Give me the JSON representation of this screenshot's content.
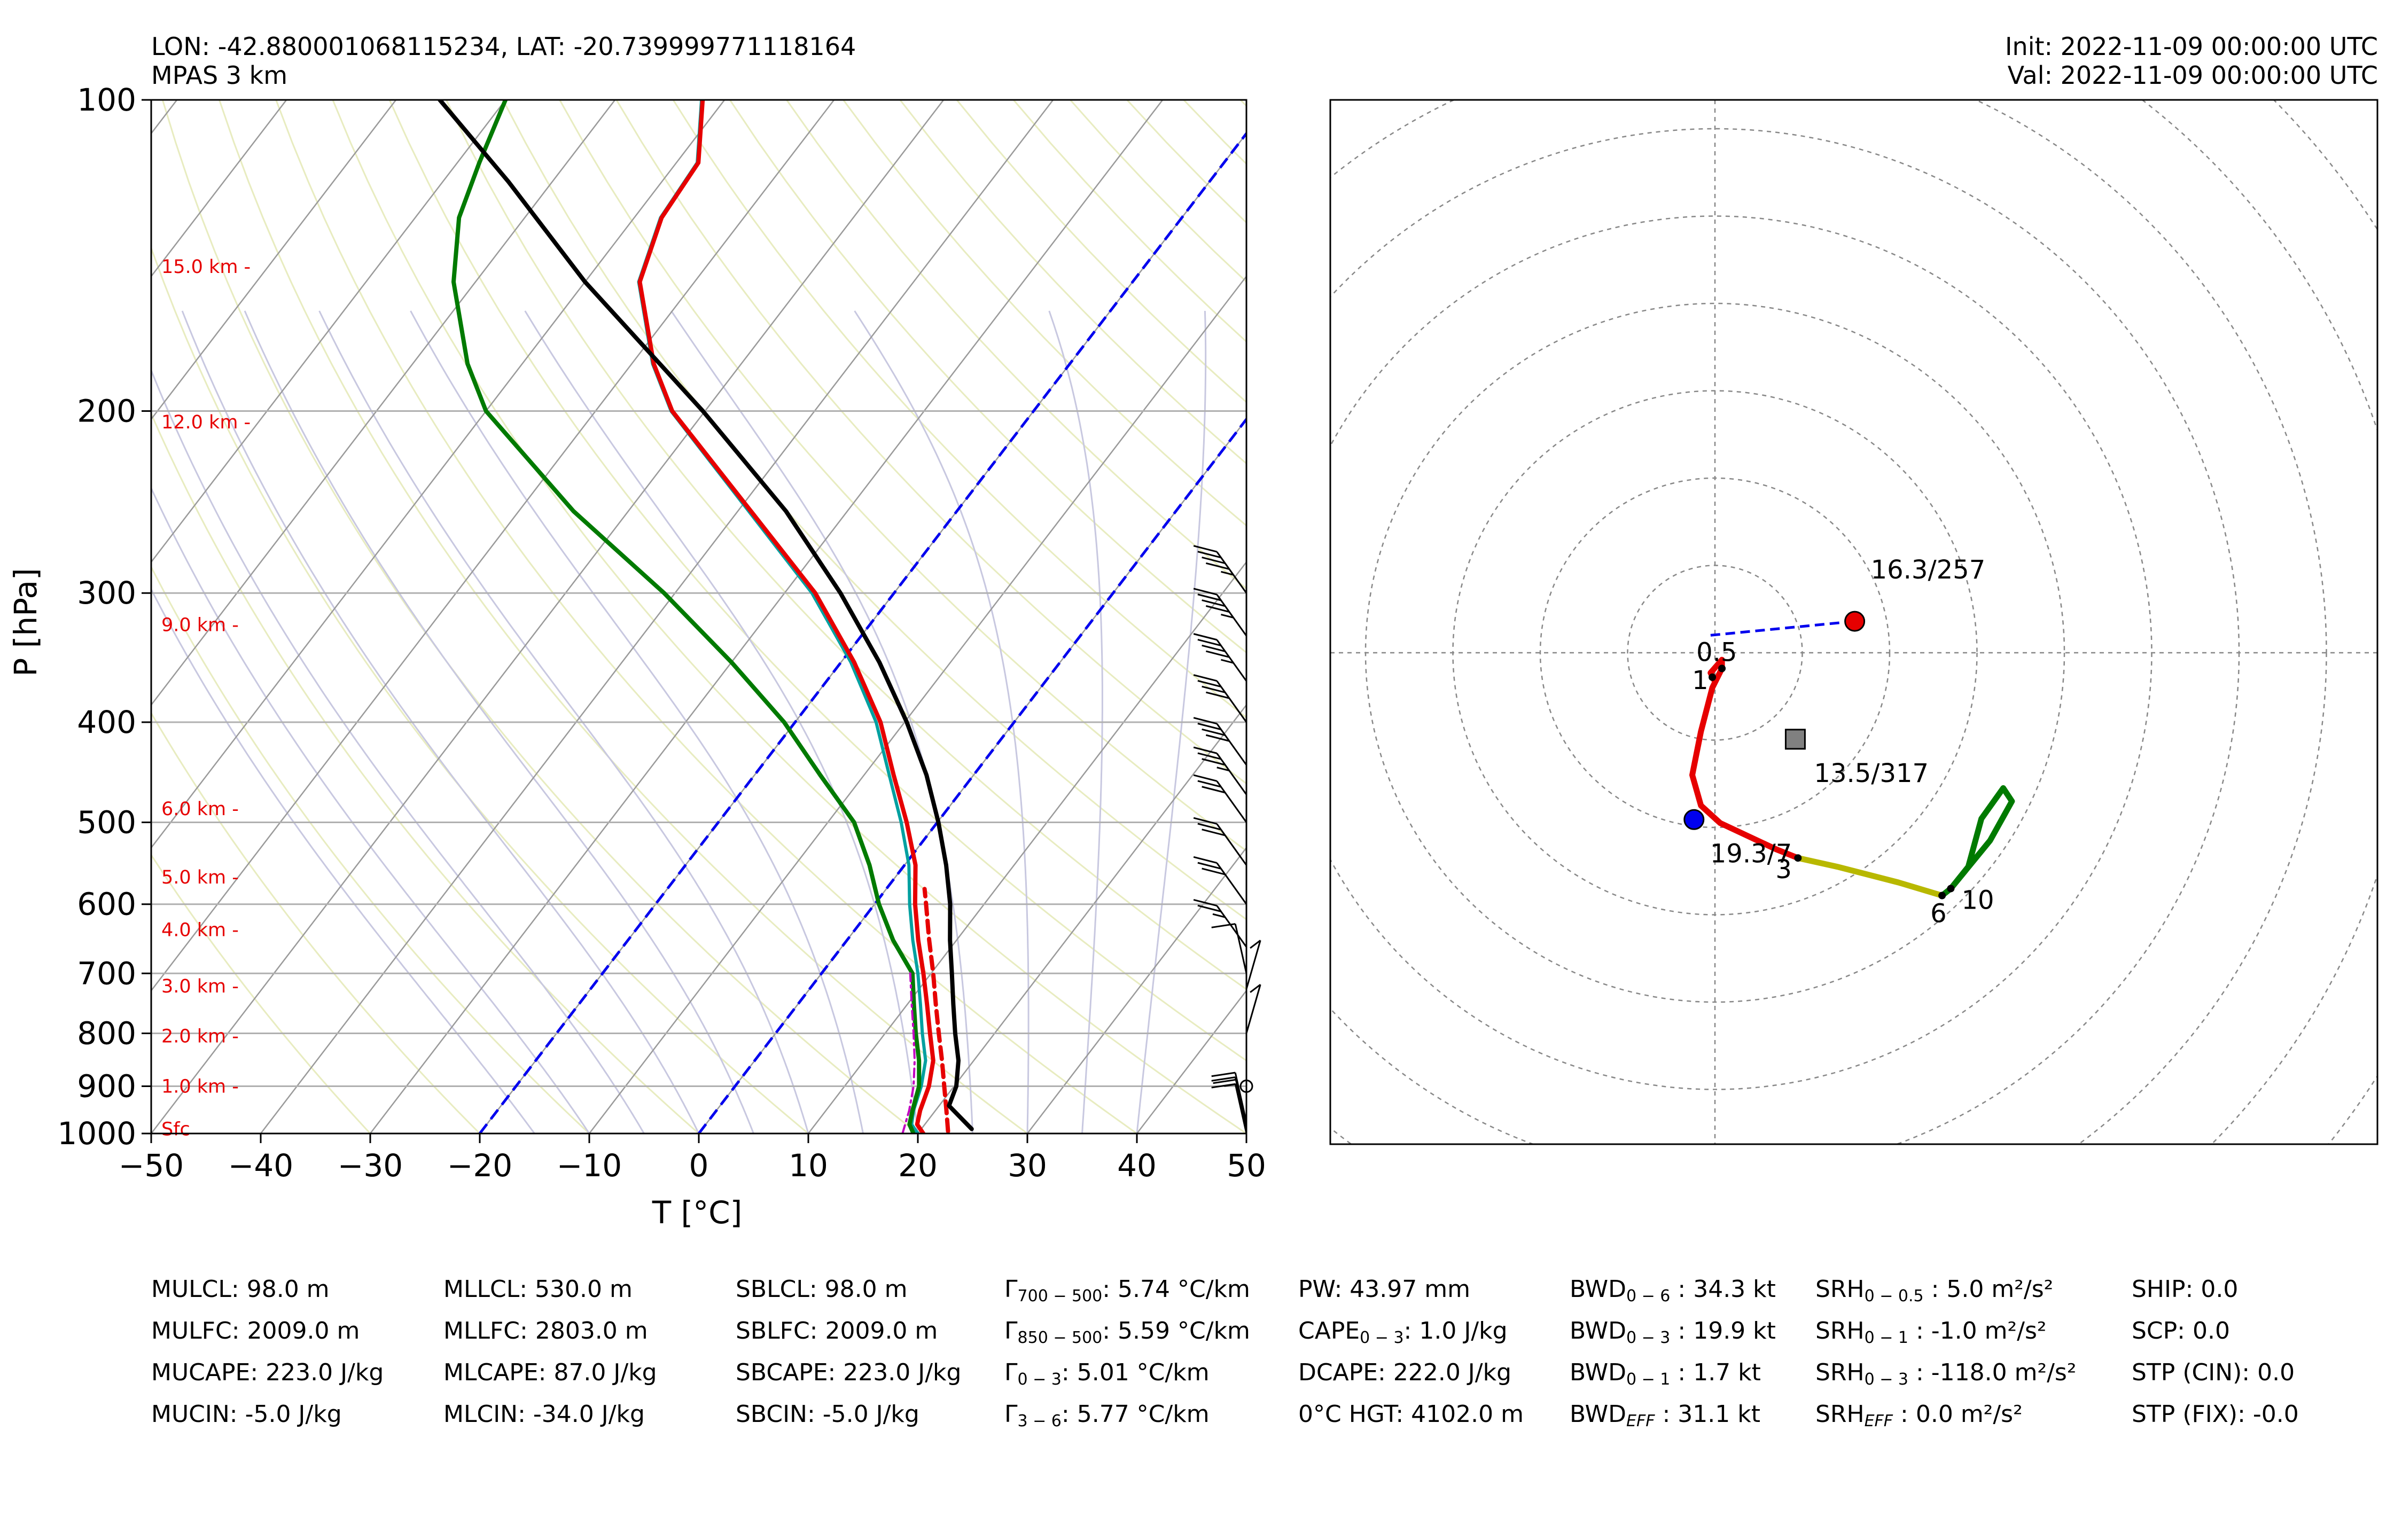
{
  "header": {
    "location": "LON: -42.880001068115234, LAT: -20.739999771118164",
    "model": "MPAS 3 km",
    "init": "Init: 2022-11-09 00:00:00 UTC",
    "valid": "Val: 2022-11-09 00:00:00 UTC"
  },
  "colors": {
    "temperature": "#e60000",
    "dewpoint": "#007a00",
    "parcel": "#000000",
    "virtual_temp": "#00a0a0",
    "dry_adiabat": "#e8ecc0",
    "moist_adiabat": "#c8c8e0",
    "isotherm": "#9a9a9a",
    "zero_isotherm": "#0000ee",
    "height_label": "#e60000",
    "hodo_0_3": "#e60000",
    "hodo_3_6": "#b8b800",
    "hodo_6_10": "#007a00"
  },
  "chart_data": [
    {
      "type": "line",
      "subtype": "skew-t log-p",
      "xlabel": "T [°C]",
      "ylabel": "P [hPa]",
      "xlim": [
        -50,
        50
      ],
      "ylim": [
        1000,
        100
      ],
      "y_scale": "log",
      "xticks": [
        -50,
        -40,
        -30,
        -20,
        -10,
        0,
        10,
        20,
        30,
        40,
        50
      ],
      "xtick_labels": [
        "−50",
        "−40",
        "−30",
        "−20",
        "−10",
        "0",
        "10",
        "20",
        "30",
        "40",
        "50"
      ],
      "yticks": [
        100,
        200,
        300,
        400,
        500,
        600,
        700,
        800,
        900,
        1000
      ],
      "ytick_labels": [
        "100",
        "200",
        "300",
        "400",
        "500",
        "600",
        "700",
        "800",
        "900",
        "1000"
      ],
      "grid": true,
      "height_labels": [
        {
          "p": 145,
          "label": "15.0 km -"
        },
        {
          "p": 205,
          "label": "12.0 km -"
        },
        {
          "p": 322,
          "label": "9.0 km -"
        },
        {
          "p": 485,
          "label": "6.0 km -"
        },
        {
          "p": 565,
          "label": "5.0 km -"
        },
        {
          "p": 635,
          "label": "4.0 km -"
        },
        {
          "p": 720,
          "label": "3.0 km -"
        },
        {
          "p": 805,
          "label": "2.0 km -"
        },
        {
          "p": 900,
          "label": "1.0 km -"
        },
        {
          "p": 990,
          "label": "Sfc"
        }
      ],
      "series": [
        {
          "role": "temperature",
          "p": [
            1000,
            980,
            950,
            900,
            850,
            800,
            750,
            700,
            650,
            600,
            550,
            500,
            450,
            400,
            350,
            300,
            250,
            200,
            180,
            150,
            130,
            115,
            100
          ],
          "t": [
            20.5,
            19.3,
            18.6,
            17.7,
            16.3,
            14.1,
            11.8,
            9.3,
            6.5,
            3.7,
            1.0,
            -2.8,
            -7.3,
            -12.2,
            -18.8,
            -27.2,
            -38.8,
            -53.0,
            -58.0,
            -65.0,
            -67.5,
            -68.0,
            -72.0
          ]
        },
        {
          "role": "virtual_temp",
          "p": [
            1000,
            980,
            950,
            900,
            850,
            800,
            750,
            700,
            650,
            600,
            550,
            500,
            450,
            400,
            350,
            300,
            250,
            200,
            180,
            150,
            130,
            115,
            100
          ],
          "t": [
            20.0,
            18.8,
            18.0,
            17.0,
            15.6,
            13.4,
            11.2,
            8.8,
            6.0,
            3.2,
            0.4,
            -3.3,
            -7.7,
            -12.6,
            -19.1,
            -27.5,
            -39.0,
            -53.1,
            -58.1,
            -65.1,
            -67.6,
            -68.1,
            -72.1
          ]
        },
        {
          "role": "dewpoint",
          "p": [
            1000,
            980,
            950,
            900,
            850,
            800,
            750,
            700,
            650,
            600,
            550,
            500,
            450,
            400,
            350,
            300,
            250,
            200,
            180,
            150,
            130,
            115,
            100
          ],
          "t": [
            19.6,
            18.6,
            17.9,
            16.8,
            15.0,
            12.8,
            10.6,
            8.3,
            4.2,
            0.4,
            -3.2,
            -7.6,
            -14.0,
            -21.0,
            -30.0,
            -41.0,
            -55.0,
            -70.0,
            -75.0,
            -82.0,
            -86.0,
            -88.0,
            -90.0
          ]
        },
        {
          "role": "parcel",
          "p": [
            990,
            940,
            900,
            850,
            800,
            750,
            700,
            650,
            600,
            550,
            500,
            450,
            400,
            350,
            300,
            250,
            200,
            150,
            120,
            100
          ],
          "t": [
            24.6,
            20.9,
            20.2,
            18.6,
            16.4,
            14.2,
            11.9,
            9.4,
            6.9,
            3.8,
            0.1,
            -4.3,
            -9.8,
            -16.5,
            -24.9,
            -35.6,
            -50.2,
            -70.0,
            -84.0,
            -96.0
          ]
        },
        {
          "role": "temperature",
          "style": "dashed",
          "p": [
            995,
            950,
            900,
            850,
            800,
            750,
            700,
            650,
            600,
            580
          ],
          "t": [
            22.6,
            21.0,
            19.1,
            17.1,
            14.9,
            12.6,
            10.2,
            7.5,
            4.7,
            3.5
          ]
        },
        {
          "role": "moist_parcel",
          "style": "dash-dot",
          "p": [
            1000,
            950,
            900,
            850,
            800,
            750,
            700
          ],
          "t": [
            18.6,
            17.6,
            16.3,
            14.6,
            12.6,
            10.4,
            8.1
          ]
        }
      ],
      "wind_barbs": [
        {
          "p": 1000,
          "speed": 10
        },
        {
          "p": 985,
          "speed": 15
        },
        {
          "p": 975,
          "speed": 20
        },
        {
          "p": 900,
          "speed": 0
        },
        {
          "p": 800,
          "speed": 5
        },
        {
          "p": 725,
          "speed": 5
        },
        {
          "p": 700,
          "speed": 10
        },
        {
          "p": 660,
          "speed": 25
        },
        {
          "p": 600,
          "speed": 30
        },
        {
          "p": 550,
          "speed": 30
        },
        {
          "p": 500,
          "speed": 30
        },
        {
          "p": 470,
          "speed": 35
        },
        {
          "p": 440,
          "speed": 40
        },
        {
          "p": 400,
          "speed": 40
        },
        {
          "p": 365,
          "speed": 45
        },
        {
          "p": 330,
          "speed": 45
        },
        {
          "p": 300,
          "speed": 45
        }
      ]
    },
    {
      "type": "line",
      "subtype": "hodograph",
      "ring_interval": 10,
      "rings": 9,
      "grid": true,
      "series": [
        {
          "layer": "0-3 km",
          "u": [
            0,
            -0.5,
            0.8,
            0.8,
            -0.3,
            -1.6,
            -2.6,
            -1.6,
            0.6,
            3.8,
            7.0,
            9.5
          ],
          "v": [
            -3.3,
            -2.3,
            -0.8,
            -1.8,
            -4.0,
            -9.0,
            -14.0,
            -17.5,
            -19.5,
            -21.0,
            -22.5,
            -23.5
          ]
        },
        {
          "layer": "3-6 km",
          "u": [
            9.5,
            14.0,
            21.0,
            26.0
          ],
          "v": [
            -23.5,
            -24.5,
            -26.3,
            -27.8
          ]
        },
        {
          "layer": "6-10 km",
          "u": [
            26.0,
            27.0,
            31.5,
            34.0,
            33.0,
            30.5,
            29.0,
            27.0
          ],
          "v": [
            -27.8,
            -27.0,
            -21.5,
            -17.0,
            -15.5,
            -19.0,
            -24.5,
            -27.0
          ]
        }
      ],
      "markers": [
        {
          "label": "0.5",
          "u": 0.8,
          "v": -1.8
        },
        {
          "label": "1",
          "u": -0.3,
          "v": -2.8
        },
        {
          "label": "3",
          "u": 9.5,
          "v": -23.5
        },
        {
          "label": "6",
          "u": 26.0,
          "v": -27.8
        },
        {
          "label": "10",
          "u": 27.0,
          "v": -27.0
        }
      ],
      "storm_motions": [
        {
          "name": "right mover",
          "label": "16.3/257",
          "u": 16.0,
          "v": 3.6,
          "color": "#e60000"
        },
        {
          "name": "left mover",
          "label": "19.3/7",
          "u": -2.4,
          "v": -19.1,
          "color": "#0000ee"
        },
        {
          "name": "mean wind",
          "label": "13.5/317",
          "u": 9.2,
          "v": -9.9,
          "color": "#808080"
        }
      ],
      "bunkers_dash": {
        "from_u": -0.5,
        "from_v": 2.0,
        "to_u": 16.0,
        "to_v": 3.6
      }
    }
  ],
  "indices": {
    "col1": [
      "MULCL: 98.0 m",
      "MULFC: 2009.0 m",
      "MUCAPE: 223.0 J/kg",
      "MUCIN: -5.0 J/kg"
    ],
    "col2": [
      "MLLCL: 530.0 m",
      "MLLFC: 2803.0 m",
      "MLCAPE: 87.0 J/kg",
      "MLCIN: -34.0 J/kg"
    ],
    "col3": [
      "SBLCL: 98.0 m",
      "SBLFC: 2009.0 m",
      "SBCAPE: 223.0 J/kg",
      "SBCIN: -5.0 J/kg"
    ],
    "col4": [
      {
        "sym": "Γ",
        "sub": "700 − 500",
        "val": ": 5.74 °C/km"
      },
      {
        "sym": "Γ",
        "sub": "850 − 500",
        "val": ": 5.59 °C/km"
      },
      {
        "sym": "Γ",
        "sub": "0 − 3",
        "val": ": 5.01 °C/km"
      },
      {
        "sym": "Γ",
        "sub": "3 − 6",
        "val": ": 5.77 °C/km"
      }
    ],
    "col5": [
      {
        "sym": "PW: 43.97 mm",
        "sub": "",
        "val": ""
      },
      {
        "sym": "CAPE",
        "sub": "0 − 3",
        "val": ": 1.0 J/kg"
      },
      {
        "sym": "DCAPE: 222.0 J/kg",
        "sub": "",
        "val": ""
      },
      {
        "sym": "0°C HGT: 4102.0 m",
        "sub": "",
        "val": ""
      }
    ],
    "col6": [
      {
        "sym": "BWD",
        "sub": "0 − 6",
        "val": " : 34.3 kt"
      },
      {
        "sym": "BWD",
        "sub": "0 − 3",
        "val": " : 19.9 kt"
      },
      {
        "sym": "BWD",
        "sub": "0 − 1",
        "val": " : 1.7 kt"
      },
      {
        "sym": "BWD",
        "sub": "EFF",
        "val": " : 31.1 kt"
      }
    ],
    "col7": [
      {
        "sym": "SRH",
        "sub": "0 − 0.5",
        "val": " : 5.0 m²/s²"
      },
      {
        "sym": "SRH",
        "sub": "0 − 1",
        "val": " : -1.0 m²/s²"
      },
      {
        "sym": "SRH",
        "sub": "0 − 3",
        "val": " : -118.0 m²/s²"
      },
      {
        "sym": "SRH",
        "sub": "EFF",
        "val": " : 0.0 m²/s²"
      }
    ],
    "col8": [
      "SHIP: 0.0",
      "SCP: 0.0",
      "STP (CIN): 0.0",
      "STP (FIX): -0.0"
    ]
  }
}
